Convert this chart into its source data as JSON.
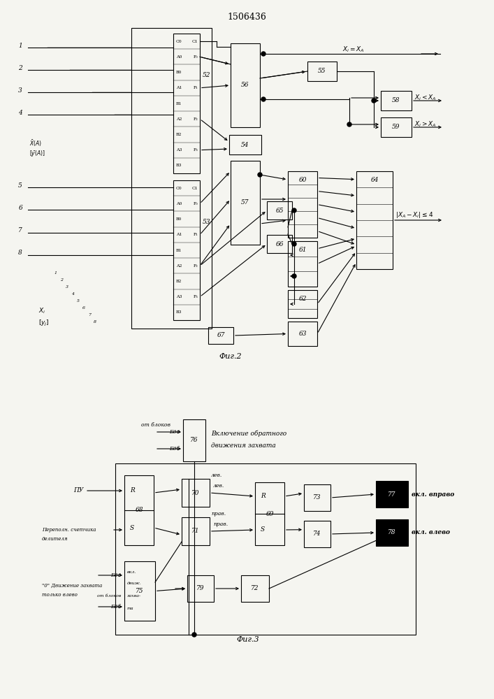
{
  "title": "1506436",
  "fig2_label": "Фиг.2",
  "fig3_label": "Фиг.3",
  "bg_color": "#f5f5f0",
  "line_color": "#000000"
}
